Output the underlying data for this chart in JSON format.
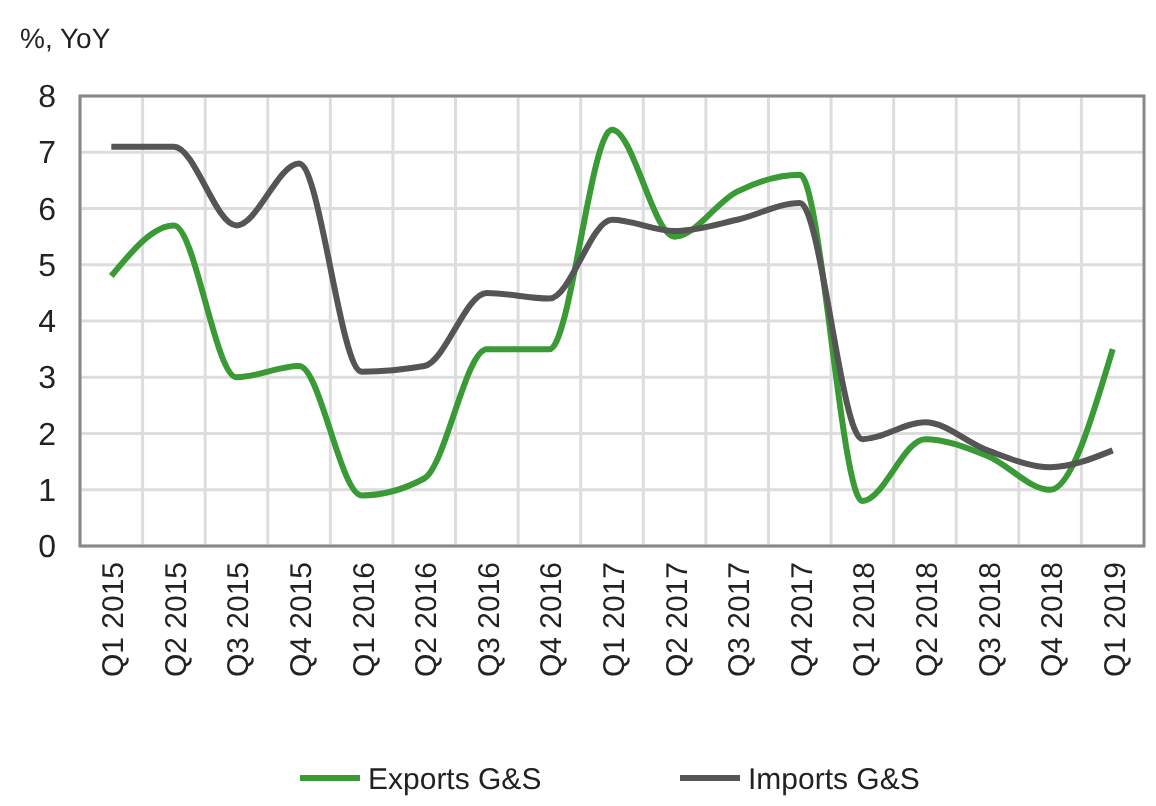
{
  "chart_data": {
    "type": "line",
    "ylabel": "%, YoY",
    "categories": [
      "Q1 2015",
      "Q2 2015",
      "Q3 2015",
      "Q4 2015",
      "Q1 2016",
      "Q2 2016",
      "Q3 2016",
      "Q4 2016",
      "Q1 2017",
      "Q2 2017",
      "Q3 2017",
      "Q4 2017",
      "Q1 2018",
      "Q2 2018",
      "Q3 2018",
      "Q4 2018",
      "Q1 2019"
    ],
    "series": [
      {
        "name": "Exports G&S",
        "color": "#3a9a35",
        "values": [
          4.8,
          5.7,
          3.0,
          3.2,
          0.9,
          1.2,
          3.5,
          3.5,
          7.4,
          5.5,
          6.3,
          6.6,
          0.8,
          1.9,
          1.6,
          1.0,
          3.5
        ]
      },
      {
        "name": "Imports G&S",
        "color": "#555555",
        "values": [
          7.1,
          7.1,
          5.7,
          6.8,
          3.1,
          3.2,
          4.5,
          4.4,
          5.8,
          5.6,
          5.8,
          6.1,
          1.9,
          2.2,
          1.7,
          1.4,
          1.7
        ]
      }
    ],
    "ylim": [
      0,
      8
    ],
    "yticks": [
      0,
      1,
      2,
      3,
      4,
      5,
      6,
      7,
      8
    ],
    "grid": true,
    "legend": "bottom",
    "marker": "none",
    "line_style": "solid"
  }
}
